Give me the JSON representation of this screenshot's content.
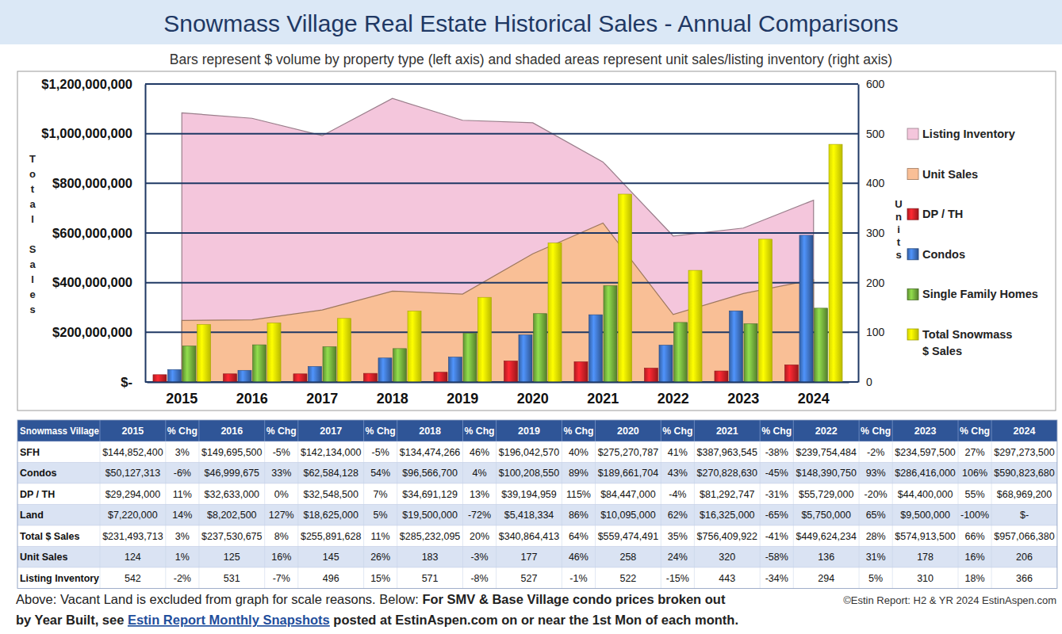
{
  "chart_data": {
    "type": "bar",
    "title": "Snowmass Village Real Estate Historical Sales - Annual Comparisons",
    "subtitle": "Bars represent $ volume by property type (left axis) and shaded areas represent unit sales/listing inventory (right axis)",
    "ylabel": "Total Sales",
    "y2label": "Units",
    "categories": [
      "2015",
      "2016",
      "2017",
      "2018",
      "2019",
      "2020",
      "2021",
      "2022",
      "2023",
      "2024"
    ],
    "ylim": [
      0,
      1200000000
    ],
    "yticks": [
      {
        "value": 0,
        "label": "$-"
      },
      {
        "value": 200000000,
        "label": "$200,000,000"
      },
      {
        "value": 400000000,
        "label": "$400,000,000"
      },
      {
        "value": 600000000,
        "label": "$600,000,000"
      },
      {
        "value": 800000000,
        "label": "$800,000,000"
      },
      {
        "value": 1000000000,
        "label": "$1,000,000,000"
      },
      {
        "value": 1200000000,
        "label": "$1,200,000,000"
      }
    ],
    "y2lim": [
      0,
      600
    ],
    "y2ticks": [
      0,
      100,
      200,
      300,
      400,
      500,
      600
    ],
    "grid": true,
    "legend": "right",
    "series": [
      {
        "name": "Listing Inventory",
        "type": "area",
        "axis": "y2",
        "color": "#f4c6dc",
        "values": [
          542,
          531,
          496,
          571,
          527,
          522,
          443,
          294,
          310,
          366
        ]
      },
      {
        "name": "Unit Sales",
        "type": "area",
        "axis": "y2",
        "color": "#f9bf96",
        "values": [
          124,
          125,
          145,
          183,
          177,
          258,
          320,
          136,
          178,
          206
        ]
      },
      {
        "name": "DP / TH",
        "type": "bar",
        "color": "#d42027",
        "values": [
          29294000,
          32633000,
          32548500,
          34691129,
          39194959,
          84447000,
          81292747,
          55729000,
          44400000,
          68969200
        ]
      },
      {
        "name": "Condos",
        "type": "bar",
        "color": "#3e73c4",
        "values": [
          50127313,
          46999675,
          62584128,
          96566700,
          100208550,
          189661704,
          270828630,
          148390750,
          286416000,
          590823680
        ]
      },
      {
        "name": "Single Family Homes",
        "type": "bar",
        "color": "#72ad3c",
        "values": [
          144852400,
          149695500,
          142134000,
          134474266,
          196042570,
          275270787,
          387963545,
          239754484,
          234597500,
          297273500
        ]
      },
      {
        "name": "Total Snowmass $ Sales",
        "type": "bar",
        "color": "#ffff00",
        "values": [
          231493713,
          237530675,
          255891628,
          285232095,
          340864413,
          559474491,
          756409922,
          449624234,
          574913500,
          957066380
        ]
      }
    ]
  },
  "table": {
    "header": [
      "Snowmass Village",
      "2015",
      "% Chg",
      "2016",
      "% Chg",
      "2017",
      "% Chg",
      "2018",
      "% Chg",
      "2019",
      "% Chg",
      "2020",
      "% Chg",
      "2021",
      "% Chg",
      "2022",
      "% Chg",
      "2023",
      "% Chg",
      "2024"
    ],
    "rows": [
      [
        "SFH",
        "$144,852,400",
        "3%",
        "$149,695,500",
        "-5%",
        "$142,134,000",
        "-5%",
        "$134,474,266",
        "46%",
        "$196,042,570",
        "40%",
        "$275,270,787",
        "41%",
        "$387,963,545",
        "-38%",
        "$239,754,484",
        "-2%",
        "$234,597,500",
        "27%",
        "$297,273,500"
      ],
      [
        "Condos",
        "$50,127,313",
        "-6%",
        "$46,999,675",
        "33%",
        "$62,584,128",
        "54%",
        "$96,566,700",
        "4%",
        "$100,208,550",
        "89%",
        "$189,661,704",
        "43%",
        "$270,828,630",
        "-45%",
        "$148,390,750",
        "93%",
        "$286,416,000",
        "106%",
        "$590,823,680"
      ],
      [
        "DP / TH",
        "$29,294,000",
        "11%",
        "$32,633,000",
        "0%",
        "$32,548,500",
        "7%",
        "$34,691,129",
        "13%",
        "$39,194,959",
        "115%",
        "$84,447,000",
        "-4%",
        "$81,292,747",
        "-31%",
        "$55,729,000",
        "-20%",
        "$44,400,000",
        "55%",
        "$68,969,200"
      ],
      [
        "Land",
        "$7,220,000",
        "14%",
        "$8,202,500",
        "127%",
        "$18,625,000",
        "5%",
        "$19,500,000",
        "-72%",
        "$5,418,334",
        "86%",
        "$10,095,000",
        "62%",
        "$16,325,000",
        "-65%",
        "$5,750,000",
        "65%",
        "$9,500,000",
        "-100%",
        "$-"
      ],
      [
        "Total $ Sales",
        "$231,493,713",
        "3%",
        "$237,530,675",
        "8%",
        "$255,891,628",
        "11%",
        "$285,232,095",
        "20%",
        "$340,864,413",
        "64%",
        "$559,474,491",
        "35%",
        "$756,409,922",
        "-41%",
        "$449,624,234",
        "28%",
        "$574,913,500",
        "66%",
        "$957,066,380"
      ],
      [
        "Unit Sales",
        "124",
        "1%",
        "125",
        "16%",
        "145",
        "26%",
        "183",
        "-3%",
        "177",
        "46%",
        "258",
        "24%",
        "320",
        "-58%",
        "136",
        "31%",
        "178",
        "16%",
        "206"
      ],
      [
        "Listing Inventory",
        "542",
        "-2%",
        "531",
        "-7%",
        "496",
        "15%",
        "571",
        "-8%",
        "527",
        "-1%",
        "522",
        "-15%",
        "443",
        "-34%",
        "294",
        "5%",
        "310",
        "18%",
        "366"
      ]
    ]
  },
  "footnote": {
    "note": "Above: Vacant Land is excluded from graph for scale reasons. Below: ",
    "bold_lead": "For SMV & Base Village condo prices broken out",
    "bold_cont": "by Year Built, see ",
    "link": "Estin Report Monthly Snapshots",
    "bold_tail": " posted at EstinAspen.com on or near the 1st Mon of each month.",
    "credit": "©Estin Report: H2 & YR 2024 EstinAspen.com"
  }
}
